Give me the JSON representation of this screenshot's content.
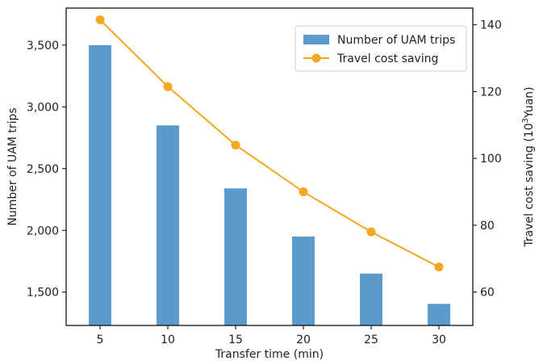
{
  "chart_data": {
    "type": "bar+line",
    "x_label": "Transfer time (min)",
    "y_left_label": "Number of UAM trips",
    "y_right_label": {
      "prefix": "Travel cost saving (10",
      "sup": "3",
      "suffix": "Yuan)"
    },
    "categories": [
      5,
      10,
      15,
      20,
      25,
      30
    ],
    "bar_series": {
      "name": "Number of UAM trips",
      "color": "#5b9bcb",
      "values": [
        3500,
        2850,
        2340,
        1950,
        1650,
        1405
      ],
      "y_range": [
        1230,
        3800
      ],
      "ticks": [
        {
          "value": 1500,
          "label": "1,500"
        },
        {
          "value": 2000,
          "label": "2,000"
        },
        {
          "value": 2500,
          "label": "2,500"
        },
        {
          "value": 3000,
          "label": "3,000"
        },
        {
          "value": 3500,
          "label": "3,500"
        }
      ]
    },
    "line_series": {
      "name": "Travel cost saving",
      "color": "#f5a623",
      "values": [
        141.5,
        121.5,
        104,
        90,
        78,
        67.5
      ],
      "y_range": [
        50,
        145
      ],
      "ticks": [
        {
          "value": 60,
          "label": "60"
        },
        {
          "value": 80,
          "label": "80"
        },
        {
          "value": 100,
          "label": "100"
        },
        {
          "value": 120,
          "label": "120"
        },
        {
          "value": 140,
          "label": "140"
        }
      ]
    },
    "legend": {
      "position": "top-right"
    },
    "grid": false
  }
}
